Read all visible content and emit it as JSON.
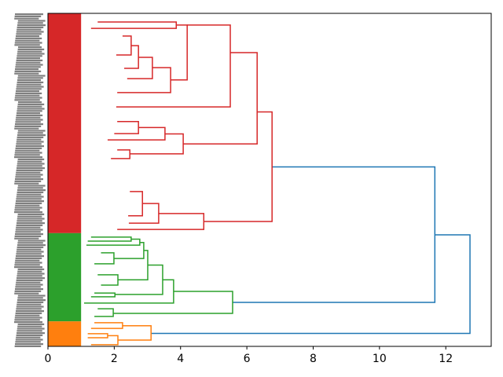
{
  "chart_data": {
    "type": "dendrogram",
    "title": "",
    "xlabel": "",
    "ylabel": "",
    "orientation": "right",
    "xlim": [
      0,
      13.37
    ],
    "xticks": [
      0,
      2,
      4,
      6,
      8,
      10,
      12
    ],
    "leaf_axis_range": [
      0,
      1000
    ],
    "leaf_labels_legible": false,
    "colors": {
      "R": "#d62728",
      "G": "#2ca02c",
      "O": "#ff7f0e",
      "B": "#1f77b4"
    },
    "clusters": [
      {
        "color": "R",
        "leaf_range": [
          0,
          660
        ]
      },
      {
        "color": "G",
        "leaf_range": [
          660,
          925
        ]
      },
      {
        "color": "O",
        "leaf_range": [
          925,
          1000
        ]
      }
    ],
    "links": [
      {
        "h": 12.73,
        "a": [
          665,
          11.67
        ],
        "b": [
          961,
          3.11
        ],
        "c": "B"
      },
      {
        "h": 11.67,
        "a": [
          461,
          6.76
        ],
        "b": [
          868,
          5.57
        ],
        "c": "B"
      },
      {
        "h": 6.76,
        "a": [
          296,
          6.31
        ],
        "b": [
          625,
          4.7
        ],
        "c": "R"
      },
      {
        "h": 6.31,
        "a": [
          118,
          5.5
        ],
        "b": [
          392,
          4.08
        ],
        "c": "R"
      },
      {
        "h": 5.5,
        "a": [
          35,
          4.2
        ],
        "b": [
          281,
          2.06
        ],
        "c": "R"
      },
      {
        "h": 4.2,
        "a": [
          35,
          3.87
        ],
        "b": [
          200,
          3.7
        ],
        "c": "R"
      },
      {
        "h": 3.87,
        "a": [
          26,
          1.5
        ],
        "b": [
          45,
          1.3
        ],
        "c": "R"
      },
      {
        "h": 3.7,
        "a": [
          163,
          3.15
        ],
        "b": [
          238,
          2.09
        ],
        "c": "R"
      },
      {
        "h": 3.15,
        "a": [
          132,
          2.73
        ],
        "b": [
          196,
          2.39
        ],
        "c": "R"
      },
      {
        "h": 2.73,
        "a": [
          97,
          2.51
        ],
        "b": [
          165,
          2.3
        ],
        "c": "R"
      },
      {
        "h": 2.51,
        "a": [
          68,
          2.25
        ],
        "b": [
          125,
          2.06
        ],
        "c": "R"
      },
      {
        "h": 4.08,
        "a": [
          362,
          3.53
        ],
        "b": [
          422,
          2.47
        ],
        "c": "R"
      },
      {
        "h": 3.53,
        "a": [
          343,
          2.73
        ],
        "b": [
          380,
          1.8
        ],
        "c": "R"
      },
      {
        "h": 2.73,
        "a": [
          325,
          2.09
        ],
        "b": [
          361,
          2.0
        ],
        "c": "R"
      },
      {
        "h": 2.47,
        "a": [
          410,
          2.09
        ],
        "b": [
          436,
          1.9
        ],
        "c": "R"
      },
      {
        "h": 4.7,
        "a": [
          601,
          3.34
        ],
        "b": [
          649,
          2.09
        ],
        "c": "R"
      },
      {
        "h": 3.34,
        "a": [
          571,
          2.85
        ],
        "b": [
          630,
          2.44
        ],
        "c": "R"
      },
      {
        "h": 2.85,
        "a": [
          535,
          2.47
        ],
        "b": [
          608,
          2.42
        ],
        "c": "R"
      },
      {
        "h": 5.57,
        "a": [
          835,
          3.79
        ],
        "b": [
          901,
          1.97
        ],
        "c": "G"
      },
      {
        "h": 3.79,
        "a": [
          800,
          3.46
        ],
        "b": [
          870,
          1.09
        ],
        "c": "G"
      },
      {
        "h": 3.46,
        "a": [
          756,
          3.01
        ],
        "b": [
          844,
          2.02
        ],
        "c": "G"
      },
      {
        "h": 3.01,
        "a": [
          712,
          2.89
        ],
        "b": [
          800,
          2.11
        ],
        "c": "G"
      },
      {
        "h": 2.89,
        "a": [
          688,
          2.77
        ],
        "b": [
          736,
          1.99
        ],
        "c": "G"
      },
      {
        "h": 2.77,
        "a": [
          678,
          2.51
        ],
        "b": [
          696,
          1.16
        ],
        "c": "G"
      },
      {
        "h": 2.51,
        "a": [
          672,
          1.3
        ],
        "b": [
          684,
          1.2
        ],
        "c": "G"
      },
      {
        "h": 2.11,
        "a": [
          785,
          1.5
        ],
        "b": [
          816,
          1.6
        ],
        "c": "G"
      },
      {
        "h": 1.99,
        "a": [
          719,
          1.6
        ],
        "b": [
          752,
          1.4
        ],
        "c": "G"
      },
      {
        "h": 2.02,
        "a": [
          840,
          1.4
        ],
        "b": [
          851,
          1.3
        ],
        "c": "G"
      },
      {
        "h": 1.97,
        "a": [
          887,
          1.5
        ],
        "b": [
          910,
          1.4
        ],
        "c": "G"
      },
      {
        "h": 3.11,
        "a": [
          938,
          2.25
        ],
        "b": [
          981,
          2.11
        ],
        "c": "O"
      },
      {
        "h": 2.25,
        "a": [
          929,
          1.4
        ],
        "b": [
          946,
          1.3
        ],
        "c": "O"
      },
      {
        "h": 2.11,
        "a": [
          968,
          1.8
        ],
        "b": [
          995,
          1.3
        ],
        "c": "O"
      },
      {
        "h": 1.8,
        "a": [
          962,
          1.2
        ],
        "b": [
          974,
          1.2
        ],
        "c": "O"
      }
    ]
  }
}
